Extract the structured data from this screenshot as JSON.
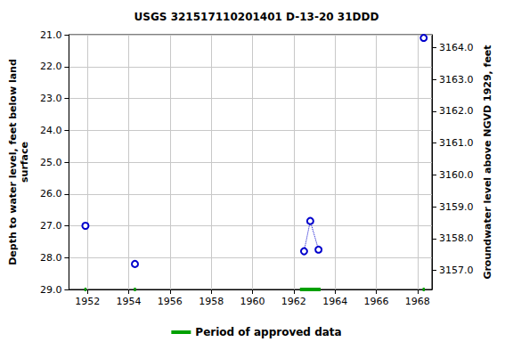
{
  "chart_data": {
    "type": "line",
    "title": "USGS 321517110201401 D-13-20 31DDD",
    "y_label": "Depth to water level, feet below land\nsurface",
    "y2_label": "Groundwater level above NGVD 1929, feet",
    "x": [
      1951.9,
      null,
      1954.3,
      null,
      1962.5,
      1962.8,
      1963.2,
      null,
      1968.3
    ],
    "values": [
      27.0,
      null,
      28.2,
      null,
      27.8,
      26.85,
      27.75,
      null,
      21.1
    ],
    "color": "#0000cc",
    "marker": "circle",
    "line_style": "dotted",
    "approved_periods": {
      "name": "Period of approved data",
      "color": "#00a000",
      "ranges": [
        [
          1951.85,
          1951.95
        ],
        [
          1954.25,
          1954.35
        ],
        [
          1962.3,
          1963.3
        ],
        [
          1968.25,
          1968.35
        ]
      ]
    },
    "xlim": [
      1951.1,
      1968.7
    ],
    "xticks": [
      1952,
      1954,
      1956,
      1958,
      1960,
      1962,
      1964,
      1966,
      1968
    ],
    "ylim": [
      29.0,
      21.0
    ],
    "yticks": [
      {
        "value": 21,
        "label": "21.0"
      },
      {
        "value": 22,
        "label": "22.0"
      },
      {
        "value": 23,
        "label": "23.0"
      },
      {
        "value": 24,
        "label": "24.0"
      },
      {
        "value": 25,
        "label": "25.0"
      },
      {
        "value": 26,
        "label": "26.0"
      },
      {
        "value": 27,
        "label": "27.0"
      },
      {
        "value": 28,
        "label": "28.0"
      },
      {
        "value": 29,
        "label": "29.0"
      }
    ],
    "y2lim": [
      3156.4,
      3164.4
    ],
    "y2ticks": [
      {
        "value": 3157,
        "label": "3157.0"
      },
      {
        "value": 3158,
        "label": "3158.0"
      },
      {
        "value": 3159,
        "label": "3159.0"
      },
      {
        "value": 3160,
        "label": "3160.0"
      },
      {
        "value": 3161,
        "label": "3161.0"
      },
      {
        "value": 3162,
        "label": "3162.0"
      },
      {
        "value": 3163,
        "label": "3163.0"
      },
      {
        "value": 3164,
        "label": "3164.0"
      }
    ],
    "grid": true,
    "legend": "bottom"
  }
}
